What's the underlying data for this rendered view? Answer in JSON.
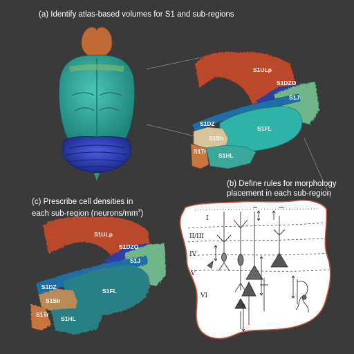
{
  "captions": {
    "a": "(a) Identify atlas-based volumes for S1 and sub-regions",
    "b_line1": "(b) Define rules for morphology",
    "b_line2": "placement in each sub-region",
    "c_line1": "(c) Prescribe cell densities in",
    "c_line2": "each sub-region (neurons/mm",
    "c_sup": "3",
    "c_end": ")"
  },
  "panel_a_labels": {
    "uplp": "S1ULp",
    "dzo": "S1DZO",
    "j": "S1J",
    "dz": "S1DZ",
    "fl": "S1FL",
    "sh": "S1Sh",
    "tr": "S1Tr",
    "hl": "S1HL"
  },
  "panel_c_labels": {
    "uplp": "S1ULp",
    "dzo": "S1DZO",
    "j": "S1J",
    "dz": "S1DZ",
    "fl": "S1FL",
    "sh": "S1Sh",
    "tr": "S1Tr",
    "hl": "S1HL"
  },
  "layers": {
    "l1": "I",
    "l23": "II/III",
    "l4": "IV",
    "l5": "V",
    "l6": "VI"
  },
  "colors": {
    "background": "#3a3a3a",
    "uplp": "#b9482b",
    "dzo": "#2a3fa8",
    "j": "#6fb68a",
    "dz": "#1f6fa6",
    "fl": "#2fb3a8",
    "sh": "#d7c59a",
    "tr": "#c9753e",
    "hl": "#3aa79a",
    "cerebellum": "#2d3fb0",
    "olfactory": "#c26a35",
    "cortex": "#2fae9f"
  }
}
